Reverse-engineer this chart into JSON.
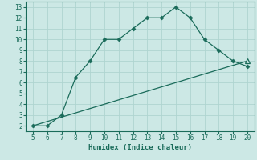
{
  "curve_x": [
    5,
    6,
    7,
    8,
    9,
    10,
    11,
    12,
    13,
    14,
    15,
    16,
    17,
    18,
    19,
    20
  ],
  "curve_y": [
    2,
    2,
    3,
    6.5,
    8,
    10,
    10,
    11,
    12,
    12,
    13,
    12,
    10,
    9,
    8,
    7.5
  ],
  "line_x": [
    5,
    20
  ],
  "line_y": [
    2,
    8
  ],
  "triangle_x": [
    20
  ],
  "triangle_y": [
    8
  ],
  "color": "#1a6b5a",
  "bg_color": "#cce8e5",
  "grid_color": "#afd4d0",
  "xlabel": "Humidex (Indice chaleur)",
  "xlim": [
    4.5,
    20.5
  ],
  "ylim": [
    1.5,
    13.5
  ],
  "xticks": [
    5,
    6,
    7,
    8,
    9,
    10,
    11,
    12,
    13,
    14,
    15,
    16,
    17,
    18,
    19,
    20
  ],
  "yticks": [
    2,
    3,
    4,
    5,
    6,
    7,
    8,
    9,
    10,
    11,
    12,
    13
  ],
  "tick_fontsize": 5.5,
  "xlabel_fontsize": 6.5,
  "marker_size": 2.5,
  "line_width": 0.9
}
